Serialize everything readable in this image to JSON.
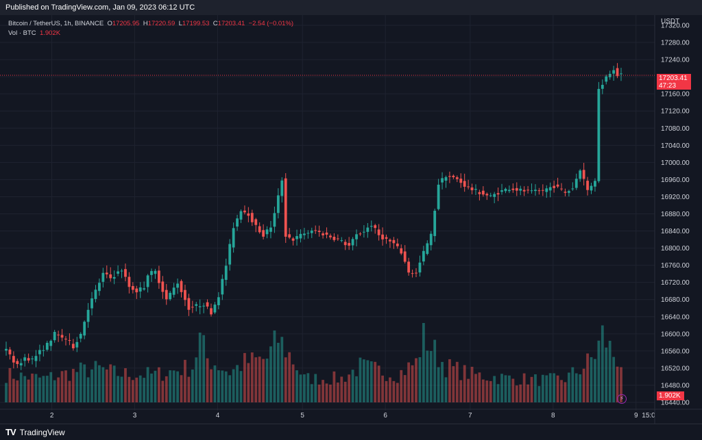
{
  "header": {
    "published": "Published on TradingView.com, Jan 09, 2023 06:12 UTC"
  },
  "legend": {
    "symbol": "Bitcoin / TetherUS, 1h, BINANCE",
    "o_label": "O",
    "o": "17205.95",
    "h_label": "H",
    "h": "17220.59",
    "l_label": "L",
    "l": "17199.53",
    "c_label": "C",
    "c": "17203.41",
    "change": "−2.54 (−0.01%)",
    "vol_label": "Vol · BTC",
    "vol": "1.902K"
  },
  "axis": {
    "currency": "USDT",
    "price_ticks": [
      "17320.00",
      "17280.00",
      "17240.00",
      "17200.00",
      "17160.00",
      "17120.00",
      "17080.00",
      "17040.00",
      "17000.00",
      "16960.00",
      "16920.00",
      "16880.00",
      "16840.00",
      "16800.00",
      "16760.00",
      "16720.00",
      "16680.00",
      "16640.00",
      "16600.00",
      "16560.00",
      "16520.00",
      "16480.00",
      "16440.00"
    ],
    "x_ticks": [
      "2",
      "3",
      "4",
      "5",
      "6",
      "7",
      "8",
      "9",
      "15:0"
    ]
  },
  "last_price": {
    "value": "17203.41",
    "countdown": "47:23"
  },
  "volume_tag": "1.902K",
  "footer": {
    "brand": "TradingView"
  },
  "colors": {
    "up": "#26a69a",
    "down": "#ef5350",
    "background": "#131722",
    "grid": "#1f2330",
    "price_line": "#f23645"
  },
  "chart_data": {
    "type": "candlestick",
    "title": "Bitcoin / TetherUS, 1h, BINANCE",
    "ylabel": "USDT",
    "ylim": [
      16440,
      17320
    ],
    "x_tick_labels": [
      "2",
      "3",
      "4",
      "5",
      "6",
      "7",
      "8",
      "9",
      "15:0"
    ],
    "keypoints": [
      [
        0,
        16560
      ],
      [
        3,
        16525
      ],
      [
        5,
        16545
      ],
      [
        7,
        16540
      ],
      [
        9,
        16558
      ],
      [
        11,
        16575
      ],
      [
        13,
        16600
      ],
      [
        16,
        16588
      ],
      [
        18,
        16570
      ],
      [
        20,
        16600
      ],
      [
        22,
        16660
      ],
      [
        24,
        16700
      ],
      [
        26,
        16740
      ],
      [
        28,
        16730
      ],
      [
        31,
        16750
      ],
      [
        33,
        16710
      ],
      [
        35,
        16700
      ],
      [
        37,
        16710
      ],
      [
        38,
        16740
      ],
      [
        40,
        16745
      ],
      [
        43,
        16680
      ],
      [
        46,
        16720
      ],
      [
        49,
        16660
      ],
      [
        51,
        16665
      ],
      [
        53,
        16670
      ],
      [
        55,
        16650
      ],
      [
        57,
        16690
      ],
      [
        59,
        16760
      ],
      [
        61,
        16850
      ],
      [
        63,
        16890
      ],
      [
        65,
        16880
      ],
      [
        67,
        16850
      ],
      [
        69,
        16830
      ],
      [
        71,
        16850
      ],
      [
        72,
        16880
      ],
      [
        74,
        16960
      ],
      [
        75,
        16830
      ],
      [
        77,
        16820
      ],
      [
        80,
        16835
      ],
      [
        83,
        16840
      ],
      [
        86,
        16830
      ],
      [
        89,
        16820
      ],
      [
        92,
        16805
      ],
      [
        94,
        16830
      ],
      [
        96,
        16840
      ],
      [
        98,
        16855
      ],
      [
        100,
        16830
      ],
      [
        102,
        16820
      ],
      [
        104,
        16810
      ],
      [
        106,
        16790
      ],
      [
        108,
        16745
      ],
      [
        110,
        16740
      ],
      [
        112,
        16790
      ],
      [
        114,
        16830
      ],
      [
        116,
        16950
      ],
      [
        118,
        16970
      ],
      [
        121,
        16960
      ],
      [
        124,
        16940
      ],
      [
        127,
        16930
      ],
      [
        130,
        16920
      ],
      [
        132,
        16930
      ],
      [
        135,
        16940
      ],
      [
        138,
        16935
      ],
      [
        141,
        16930
      ],
      [
        144,
        16935
      ],
      [
        147,
        16945
      ],
      [
        150,
        16930
      ],
      [
        152,
        16940
      ],
      [
        154,
        16985
      ],
      [
        156,
        16935
      ],
      [
        158,
        16960
      ],
      [
        159,
        17170
      ],
      [
        161,
        17200
      ],
      [
        163,
        17220
      ],
      [
        164,
        17205
      ],
      [
        165,
        17203.41
      ]
    ],
    "volume_keypoints": [
      [
        0,
        0.35
      ],
      [
        10,
        0.3
      ],
      [
        20,
        0.4
      ],
      [
        25,
        0.42
      ],
      [
        30,
        0.36
      ],
      [
        40,
        0.35
      ],
      [
        50,
        0.45
      ],
      [
        52,
        0.8
      ],
      [
        54,
        0.55
      ],
      [
        60,
        0.38
      ],
      [
        64,
        0.5
      ],
      [
        70,
        0.55
      ],
      [
        73,
        0.8
      ],
      [
        76,
        0.6
      ],
      [
        80,
        0.3
      ],
      [
        90,
        0.3
      ],
      [
        95,
        0.45
      ],
      [
        100,
        0.4
      ],
      [
        105,
        0.35
      ],
      [
        110,
        0.5
      ],
      [
        112,
        0.85
      ],
      [
        114,
        0.7
      ],
      [
        118,
        0.45
      ],
      [
        125,
        0.35
      ],
      [
        135,
        0.3
      ],
      [
        145,
        0.28
      ],
      [
        150,
        0.3
      ],
      [
        155,
        0.45
      ],
      [
        158,
        0.6
      ],
      [
        160,
        0.85
      ],
      [
        163,
        0.6
      ],
      [
        165,
        0.5
      ]
    ]
  }
}
